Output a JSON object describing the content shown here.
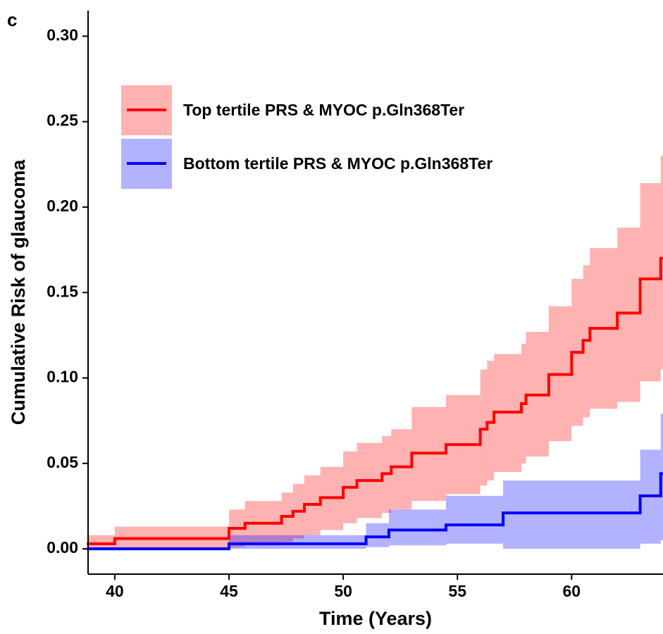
{
  "chart_data": {
    "type": "step",
    "panel_label": "c",
    "xlabel": "Time (Years)",
    "ylabel": "Cumulative Risk of glaucoma",
    "xlim": [
      38.83,
      64
    ],
    "ylim": [
      -0.0148,
      0.315
    ],
    "xticks": [
      40,
      45,
      50,
      55,
      60
    ],
    "yticks": [
      {
        "value": 0,
        "label": "0.00"
      },
      {
        "value": 0.05,
        "label": "0.05"
      },
      {
        "value": 0.1,
        "label": "0.10"
      },
      {
        "value": 0.15,
        "label": "0.15"
      },
      {
        "value": 0.2,
        "label": "0.20"
      },
      {
        "value": 0.25,
        "label": "0.25"
      },
      {
        "value": 0.3,
        "label": "0.30"
      }
    ],
    "legend": "top-left",
    "series": [
      {
        "name": "Top tertile PRS & MYOC p.Gln368Ter",
        "color": "#ff0000",
        "x": [
          38.83,
          40,
          45,
          45.7,
          47.3,
          47.8,
          48.3,
          49.0,
          50.0,
          50.6,
          51.7,
          52.1,
          53.0,
          54.5,
          56.0,
          56.3,
          56.6,
          57.8,
          58.0,
          59.0,
          60.0,
          60.5,
          60.8,
          62.0,
          63.0,
          63.9
        ],
        "values": [
          0.003,
          0.006,
          0.012,
          0.015,
          0.019,
          0.022,
          0.026,
          0.03,
          0.036,
          0.04,
          0.044,
          0.048,
          0.056,
          0.061,
          0.07,
          0.074,
          0.08,
          0.085,
          0.09,
          0.102,
          0.115,
          0.122,
          0.129,
          0.138,
          0.158,
          0.17
        ],
        "lower": [
          0.0,
          0.0,
          0.001,
          0.002,
          0.004,
          0.006,
          0.008,
          0.011,
          0.015,
          0.018,
          0.021,
          0.023,
          0.028,
          0.032,
          0.037,
          0.04,
          0.045,
          0.05,
          0.054,
          0.063,
          0.072,
          0.077,
          0.082,
          0.086,
          0.098,
          0.105
        ],
        "upper": [
          0.008,
          0.013,
          0.023,
          0.028,
          0.033,
          0.038,
          0.043,
          0.048,
          0.057,
          0.062,
          0.066,
          0.07,
          0.083,
          0.09,
          0.105,
          0.11,
          0.114,
          0.12,
          0.127,
          0.142,
          0.158,
          0.166,
          0.176,
          0.188,
          0.214,
          0.23
        ]
      },
      {
        "name": "Bottom tertile PRS & MYOC p.Gln368Ter",
        "color": "#0000ff",
        "x": [
          38.83,
          45,
          51,
          52,
          54.5,
          57,
          63,
          63.9
        ],
        "values": [
          0.0,
          0.003,
          0.007,
          0.011,
          0.014,
          0.021,
          0.031,
          0.044
        ],
        "lower": [
          0.0,
          0.0,
          0.001,
          0.002,
          0.003,
          0.0,
          0.003,
          0.005
        ],
        "upper": [
          0.001,
          0.008,
          0.015,
          0.023,
          0.031,
          0.04,
          0.058,
          0.079
        ]
      }
    ]
  }
}
